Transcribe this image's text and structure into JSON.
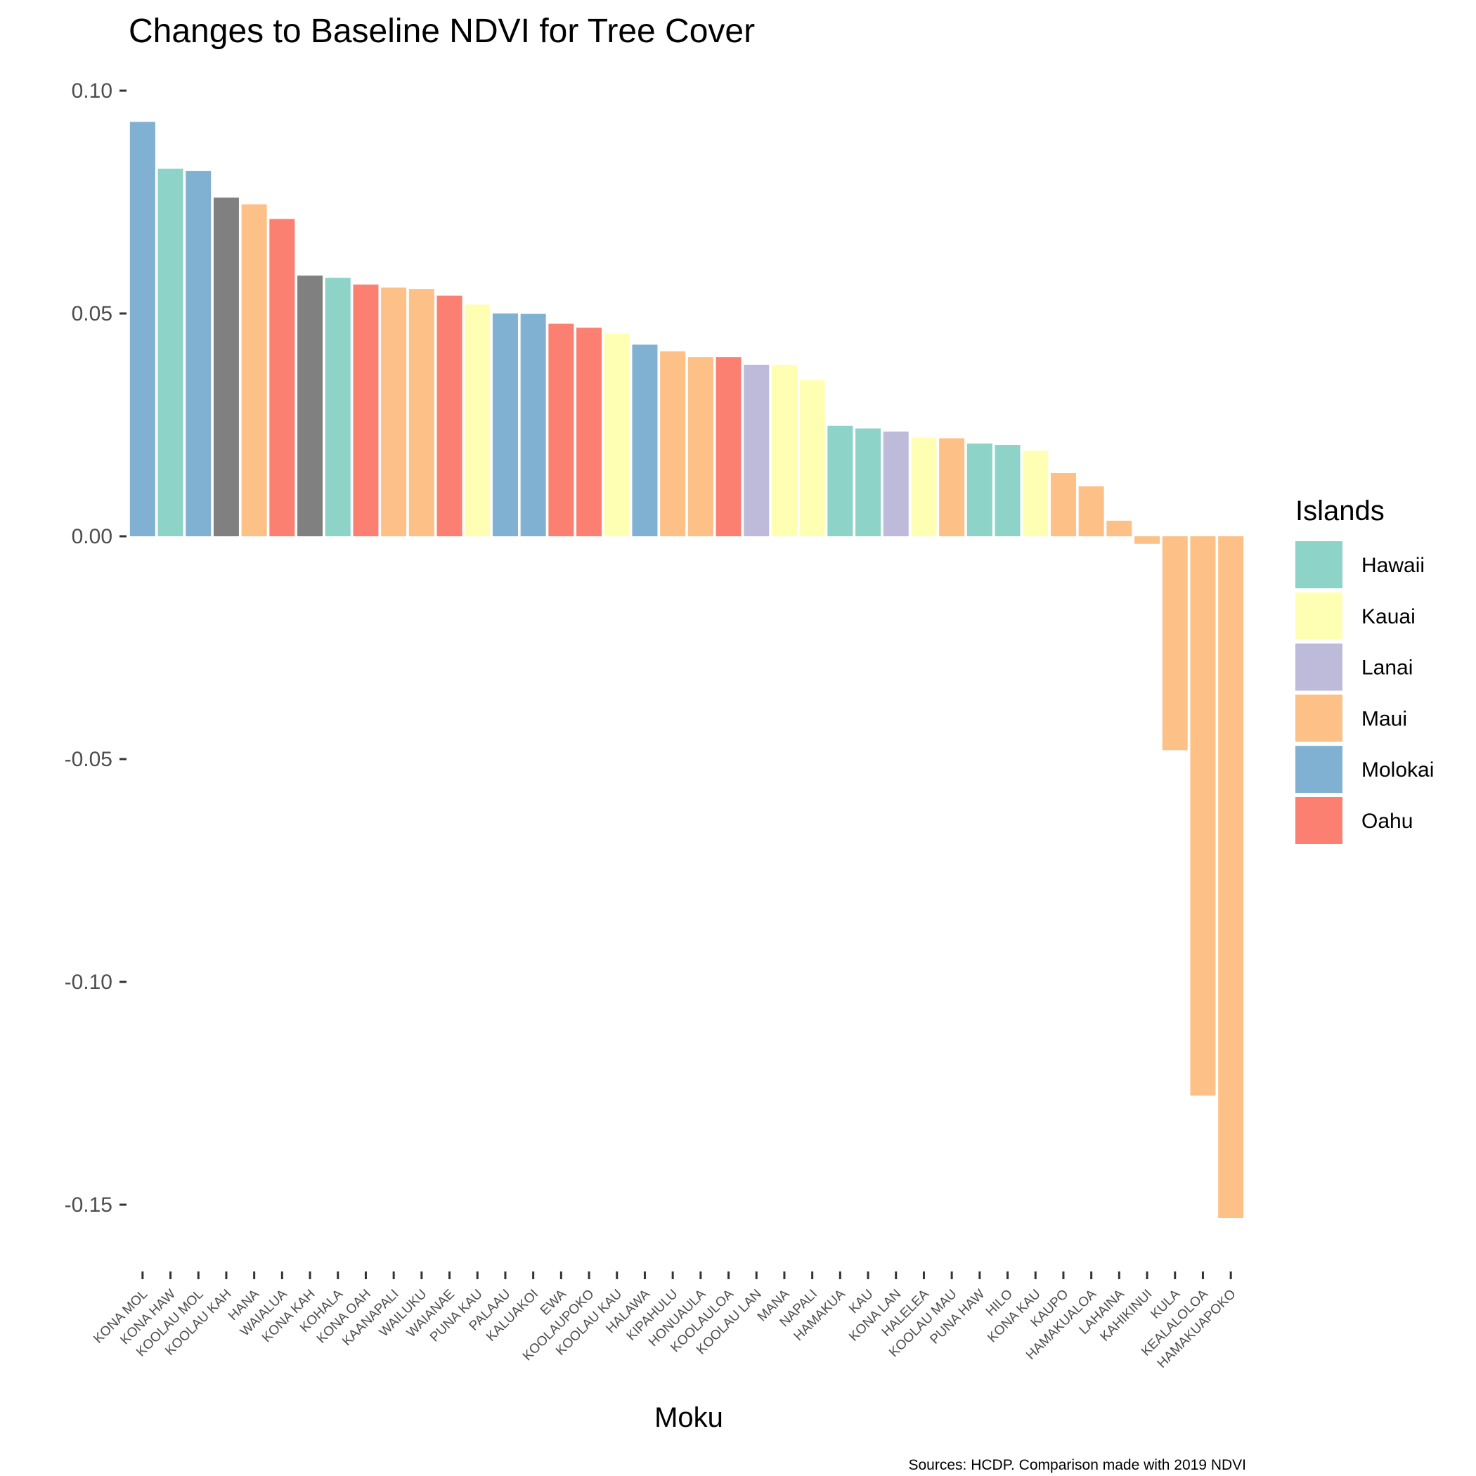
{
  "chart_data": {
    "type": "bar",
    "title": "Changes to Baseline NDVI for Tree Cover",
    "xlabel": "Moku",
    "ylabel": "",
    "caption": "Sources: HCDP. Comparison made with 2019 NDVI",
    "ylim": [
      -0.16,
      0.1
    ],
    "yticks": [
      0.1,
      0.05,
      0.0,
      -0.05,
      -0.1,
      -0.15
    ],
    "ytick_labels": [
      "0.10",
      "0.05",
      "0.00",
      "-0.05",
      "-0.10",
      "-0.15"
    ],
    "grid": false,
    "legend": {
      "title": "Islands",
      "position": "right",
      "items": [
        {
          "label": "Hawaii",
          "color": "#8dd3c7"
        },
        {
          "label": "Kauai",
          "color": "#ffffb3"
        },
        {
          "label": "Lanai",
          "color": "#bebada"
        },
        {
          "label": "Maui",
          "color": "#fdc086"
        },
        {
          "label": "Molokai",
          "color": "#80b1d3"
        },
        {
          "label": "Oahu",
          "color": "#fb8072"
        }
      ]
    },
    "na_color": "#808080",
    "bars": [
      {
        "category": "KONA MOL",
        "island": "Molokai",
        "value": 0.093
      },
      {
        "category": "KONA HAW",
        "island": "Hawaii",
        "value": 0.0825
      },
      {
        "category": "KOOLAU MOL",
        "island": "Molokai",
        "value": 0.082
      },
      {
        "category": "KOOLAU KAH",
        "island": "",
        "value": 0.076
      },
      {
        "category": "HANA",
        "island": "Maui",
        "value": 0.0745
      },
      {
        "category": "WAIALUA",
        "island": "Oahu",
        "value": 0.0712
      },
      {
        "category": "KONA KAH",
        "island": "",
        "value": 0.0585
      },
      {
        "category": "KOHALA",
        "island": "Hawaii",
        "value": 0.058
      },
      {
        "category": "KONA OAH",
        "island": "Oahu",
        "value": 0.0565
      },
      {
        "category": "KAANAPALI",
        "island": "Maui",
        "value": 0.0558
      },
      {
        "category": "WAILUKU",
        "island": "Maui",
        "value": 0.0555
      },
      {
        "category": "WAIANAE",
        "island": "Oahu",
        "value": 0.054
      },
      {
        "category": "PUNA KAU",
        "island": "Kauai",
        "value": 0.052
      },
      {
        "category": "PALAAU",
        "island": "Molokai",
        "value": 0.05
      },
      {
        "category": "KALUAKOI",
        "island": "Molokai",
        "value": 0.0499
      },
      {
        "category": "EWA",
        "island": "Oahu",
        "value": 0.0477
      },
      {
        "category": "KOOLAUPOKO",
        "island": "Oahu",
        "value": 0.0468
      },
      {
        "category": "KOOLAU KAU",
        "island": "Kauai",
        "value": 0.0455
      },
      {
        "category": "HALAWA",
        "island": "Molokai",
        "value": 0.043
      },
      {
        "category": "KIPAHULU",
        "island": "Maui",
        "value": 0.0415
      },
      {
        "category": "HONUAULA",
        "island": "Maui",
        "value": 0.0402
      },
      {
        "category": "KOOLAULOA",
        "island": "Oahu",
        "value": 0.0402
      },
      {
        "category": "KOOLAU LAN",
        "island": "Lanai",
        "value": 0.0385
      },
      {
        "category": "MANA",
        "island": "Kauai",
        "value": 0.0385
      },
      {
        "category": "NAPALI",
        "island": "Kauai",
        "value": 0.035
      },
      {
        "category": "HAMAKUA",
        "island": "Hawaii",
        "value": 0.0248
      },
      {
        "category": "KAU",
        "island": "Hawaii",
        "value": 0.0242
      },
      {
        "category": "KONA LAN",
        "island": "Lanai",
        "value": 0.0235
      },
      {
        "category": "HALELEA",
        "island": "Kauai",
        "value": 0.0222
      },
      {
        "category": "KOOLAU MAU",
        "island": "Maui",
        "value": 0.022
      },
      {
        "category": "PUNA HAW",
        "island": "Hawaii",
        "value": 0.0208
      },
      {
        "category": "HILO",
        "island": "Hawaii",
        "value": 0.0205
      },
      {
        "category": "KONA KAU",
        "island": "Kauai",
        "value": 0.0192
      },
      {
        "category": "KAUPO",
        "island": "Maui",
        "value": 0.0142
      },
      {
        "category": "HAMAKUALOA",
        "island": "Maui",
        "value": 0.0112
      },
      {
        "category": "LAHAINA",
        "island": "Maui",
        "value": 0.0035
      },
      {
        "category": "KAHIKINUI",
        "island": "Maui",
        "value": -0.0017
      },
      {
        "category": "KULA",
        "island": "Maui",
        "value": -0.048
      },
      {
        "category": "KEALALOLOA",
        "island": "Maui",
        "value": -0.1255
      },
      {
        "category": "HAMAKUAPOKO",
        "island": "Maui",
        "value": -0.153
      }
    ]
  }
}
